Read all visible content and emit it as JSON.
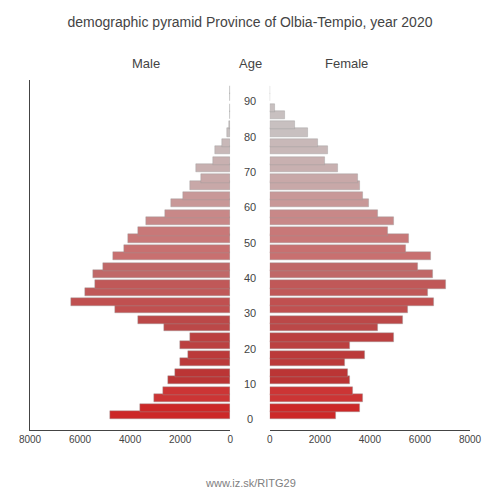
{
  "chart_data": {
    "type": "bar",
    "orientation": "horizontal",
    "title": "demographic pyramid Province of Olbia-Tempio, year 2020",
    "ylabel": "Age",
    "x": [
      0,
      2,
      5,
      7,
      10,
      12,
      15,
      17,
      20,
      22,
      25,
      27,
      30,
      32,
      35,
      37,
      40,
      42,
      45,
      47,
      50,
      52,
      55,
      57,
      60,
      62,
      65,
      67,
      70,
      72,
      75,
      77,
      80,
      82,
      85,
      87,
      90,
      92
    ],
    "series": [
      {
        "name": "Male",
        "values": [
          4800,
          3600,
          3050,
          2700,
          2500,
          2200,
          2000,
          1700,
          2000,
          1600,
          2650,
          3700,
          4600,
          6350,
          5800,
          5400,
          5500,
          5100,
          4700,
          4250,
          4100,
          3700,
          3350,
          2600,
          2350,
          1900,
          1600,
          1150,
          1350,
          700,
          600,
          330,
          130,
          50,
          0,
          0,
          0,
          0
        ]
      },
      {
        "name": "Female",
        "values": [
          2650,
          3600,
          3700,
          3300,
          3200,
          3100,
          3000,
          3800,
          3200,
          4950,
          4300,
          5300,
          5500,
          6550,
          6300,
          7050,
          6500,
          5900,
          6450,
          5450,
          5550,
          4700,
          4950,
          4300,
          3950,
          3700,
          3600,
          3500,
          2700,
          2200,
          2300,
          1900,
          1500,
          1000,
          600,
          200,
          0,
          0
        ]
      }
    ],
    "colors": [
      "#cc2828",
      "#cc2828",
      "#cc3535",
      "#cc3535",
      "#bb3535",
      "#bb3535",
      "#bb3a3a",
      "#bb3a3a",
      "#bb4040",
      "#bb4040",
      "#bb4848",
      "#bb4848",
      "#c05050",
      "#c05050",
      "#c05858",
      "#c05858",
      "#c06868",
      "#c06868",
      "#c87070",
      "#c87070",
      "#c87878",
      "#c87878",
      "#c88888",
      "#c88888",
      "#c89898",
      "#c89898",
      "#c8a8a8",
      "#c8a8a8",
      "#c8b0b0",
      "#c8b0b0",
      "#c8b8b8",
      "#c8b8b8",
      "#c8c0c0",
      "#c8c0c0",
      "#c8c0c0",
      "#c8c0c0",
      "#c8c8c8",
      "#c8c8c8"
    ],
    "xlim": [
      0,
      8000
    ],
    "xticks": [
      0,
      2000,
      4000,
      6000,
      8000
    ],
    "ylim": [
      -3,
      96
    ],
    "yticks": [
      0,
      10,
      20,
      30,
      40,
      50,
      60,
      70,
      80,
      90
    ],
    "grid": false,
    "annotations": [
      {
        "text": "www.iz.sk/RITG29"
      }
    ]
  }
}
